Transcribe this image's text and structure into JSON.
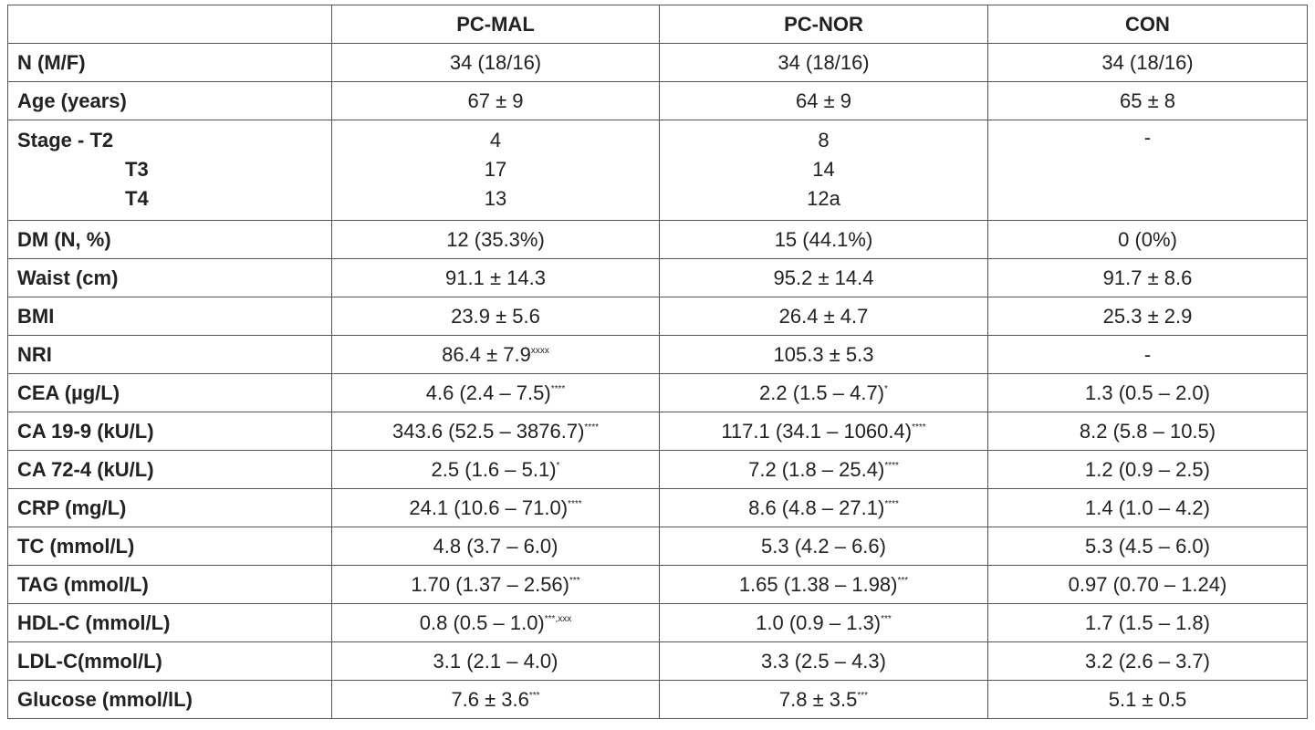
{
  "table": {
    "header": [
      "PC-MAL",
      "PC-NOR",
      "CON"
    ],
    "rows": [
      {
        "label": "N (M/F)",
        "cells": [
          "34 (18/16)",
          "34 (18/16)",
          "34 (18/16)"
        ]
      },
      {
        "label": "Age (years)",
        "cells": [
          "67 ± 9",
          "64 ± 9",
          "65 ± 8"
        ]
      },
      {
        "label": [
          "Stage  - T2",
          "T3",
          "T4"
        ],
        "cells": [
          [
            "4",
            "17",
            "13"
          ],
          [
            "8",
            "14",
            "12a"
          ],
          "-"
        ]
      },
      {
        "label": "DM (N, %)",
        "cells": [
          "12 (35.3%)",
          "15 (44.1%)",
          "0 (0%)"
        ]
      },
      {
        "label": "Waist (cm)",
        "cells": [
          "91.1 ± 14.3",
          "95.2 ± 14.4",
          "91.7 ± 8.6"
        ]
      },
      {
        "label": "BMI",
        "cells": [
          "23.9 ± 5.6",
          "26.4 ± 4.7",
          "25.3 ± 2.9"
        ]
      },
      {
        "label": "NRI",
        "cells": [
          {
            "text": "86.4 ± 7.9",
            "sup": "xxxx"
          },
          "105.3 ± 5.3",
          "-"
        ]
      },
      {
        "label": "CEA (µg/L)",
        "cells": [
          {
            "text": "4.6 (2.4 – 7.5)",
            "sup": "****"
          },
          {
            "text": "2.2 (1.5 – 4.7)",
            "sup": "*"
          },
          "1.3 (0.5 – 2.0)"
        ]
      },
      {
        "label": "CA 19-9 (kU/L)",
        "cells": [
          {
            "text": "343.6 (52.5 – 3876.7)",
            "sup": "****"
          },
          {
            "text": "117.1 (34.1 – 1060.4)",
            "sup": "****"
          },
          "8.2 (5.8 – 10.5)"
        ]
      },
      {
        "label": "CA 72-4 (kU/L)",
        "cells": [
          {
            "text": "2.5 (1.6 – 5.1)",
            "sup": "*"
          },
          {
            "text": "7.2 (1.8 – 25.4)",
            "sup": "****"
          },
          "1.2 (0.9 – 2.5)"
        ]
      },
      {
        "label": "CRP (mg/L)",
        "cells": [
          {
            "text": "24.1 (10.6 – 71.0)",
            "sup": "****"
          },
          {
            "text": "8.6 (4.8 – 27.1)",
            "sup": "****"
          },
          "1.4 (1.0 – 4.2)"
        ]
      },
      {
        "label": "TC (mmol/L)",
        "cells": [
          "4.8 (3.7 – 6.0)",
          "5.3 (4.2 – 6.6)",
          "5.3 (4.5 – 6.0)"
        ]
      },
      {
        "label": "TAG (mmol/L)",
        "cells": [
          {
            "text": "1.70 (1.37 – 2.56)",
            "sup": "***"
          },
          {
            "text": "1.65 (1.38 – 1.98)",
            "sup": "***"
          },
          "0.97 (0.70 – 1.24)"
        ]
      },
      {
        "label": "HDL-C (mmol/L)",
        "cells": [
          {
            "text": "0.8 (0.5 – 1.0)",
            "sup": "***,xxx"
          },
          {
            "text": "1.0 (0.9 – 1.3)",
            "sup": "***"
          },
          "1.7 (1.5 – 1.8)"
        ]
      },
      {
        "label": "LDL-C(mmol/L)",
        "cells": [
          "3.1 (2.1 – 4.0)",
          "3.3 (2.5 – 4.3)",
          "3.2 (2.6 – 3.7)"
        ]
      },
      {
        "label": "Glucose (mmol/lL)",
        "cells": [
          {
            "text": "7.6 ± 3.6",
            "sup": "***"
          },
          {
            "text": "7.8 ± 3.5",
            "sup": "***"
          },
          "5.1 ± 0.5"
        ]
      }
    ]
  }
}
